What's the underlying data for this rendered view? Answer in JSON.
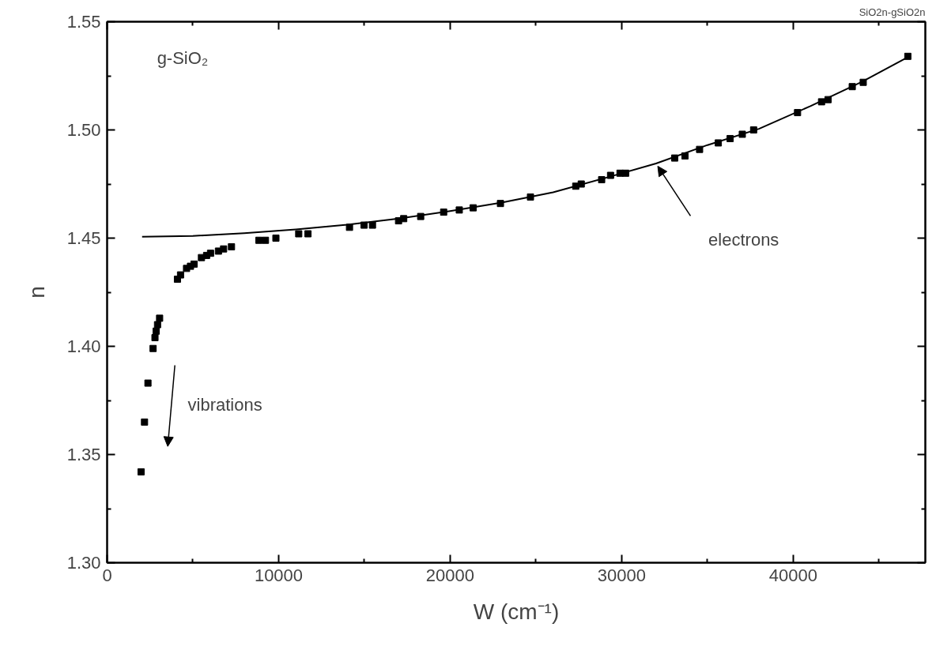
{
  "chart_data": {
    "type": "scatter",
    "xlabel": "W (cm⁻¹)",
    "ylabel": "n",
    "xlim": [
      0,
      47700
    ],
    "ylim": [
      1.3,
      1.55
    ],
    "xticks": [
      0,
      {
        "value": 5000,
        "label": null
      },
      10000,
      {
        "value": 15000,
        "label": null
      },
      20000,
      {
        "value": 25000,
        "label": null
      },
      30000,
      {
        "value": 35000,
        "label": null
      },
      40000,
      {
        "value": 45000,
        "label": null
      }
    ],
    "yticks": [
      {
        "value": 1.3,
        "label": "1.30"
      },
      {
        "value": 1.325,
        "label": null
      },
      {
        "value": 1.35,
        "label": "1.35"
      },
      {
        "value": 1.375,
        "label": null
      },
      {
        "value": 1.4,
        "label": "1.40"
      },
      {
        "value": 1.425,
        "label": null
      },
      {
        "value": 1.45,
        "label": "1.45"
      },
      {
        "value": 1.475,
        "label": null
      },
      {
        "value": 1.5,
        "label": "1.50"
      },
      {
        "value": 1.525,
        "label": null
      },
      {
        "value": 1.55,
        "label": "1.55"
      }
    ],
    "grid": false,
    "marker": "square",
    "series": [
      {
        "color": "#000000",
        "x": [
          1980,
          2180,
          2380,
          2680,
          2790,
          2860,
          2940,
          3060,
          4100,
          4280,
          4630,
          4860,
          5070,
          5500,
          5800,
          6030,
          6490,
          6790,
          7250,
          8850,
          9230,
          9840,
          11170,
          11710,
          14130,
          14980,
          15470,
          16990,
          17290,
          18280,
          19620,
          20530,
          21340,
          22930,
          24680,
          27320,
          27640,
          28830,
          29350,
          29900,
          30230,
          33090,
          33690,
          34540,
          35630,
          36320,
          37030,
          37690,
          40250,
          41650,
          42030,
          43440,
          44080,
          46680
        ],
        "values": [
          1.342,
          1.365,
          1.383,
          1.399,
          1.404,
          1.407,
          1.41,
          1.413,
          1.431,
          1.433,
          1.436,
          1.437,
          1.438,
          1.441,
          1.442,
          1.443,
          1.444,
          1.445,
          1.446,
          1.449,
          1.449,
          1.45,
          1.452,
          1.452,
          1.455,
          1.456,
          1.456,
          1.458,
          1.459,
          1.46,
          1.462,
          1.463,
          1.464,
          1.466,
          1.469,
          1.474,
          1.475,
          1.477,
          1.479,
          1.48,
          1.48,
          1.487,
          1.488,
          1.491,
          1.494,
          1.496,
          1.498,
          1.5,
          1.508,
          1.513,
          1.514,
          1.52,
          1.522,
          1.534
        ]
      },
      {
        "type": "line",
        "color": "#000000",
        "marker": "none",
        "line_style": "solid",
        "x": [
          2040,
          5000,
          8000,
          11000,
          14000,
          17000,
          20000,
          23000,
          26000,
          29000,
          32000,
          35000,
          38000,
          41000,
          44000,
          46680
        ],
        "values": [
          1.4506,
          1.451,
          1.4523,
          1.454,
          1.4562,
          1.459,
          1.4625,
          1.4664,
          1.4712,
          1.4777,
          1.4845,
          1.493,
          1.5005,
          1.511,
          1.5222,
          1.5336
        ]
      }
    ],
    "annotations": [
      "g-SiO₂",
      "SiO2n-gSiO2n",
      "electrons",
      "vibrations"
    ]
  }
}
